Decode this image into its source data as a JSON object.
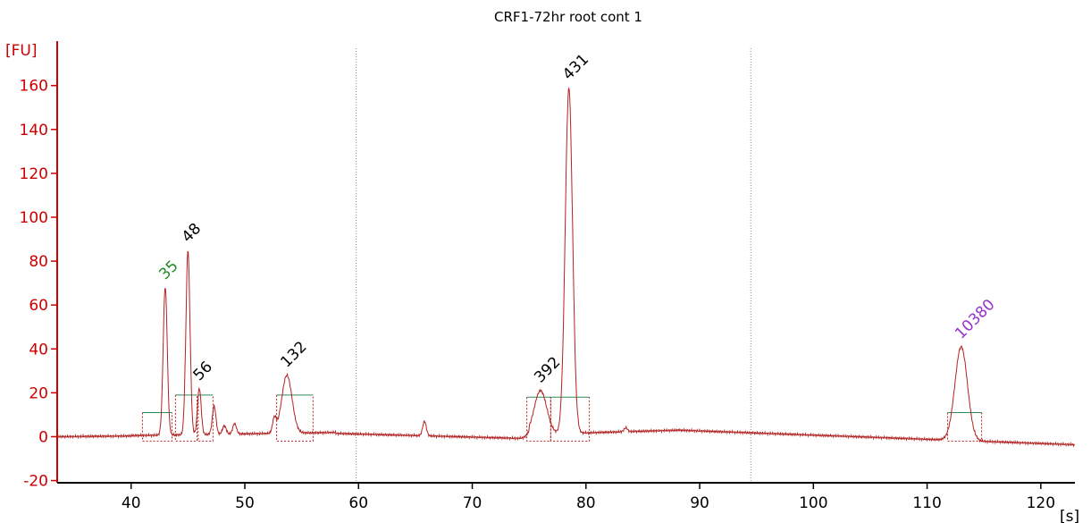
{
  "chart_data": {
    "type": "line",
    "title": "CRF1-72hr root cont 1",
    "x_unit": "[s]",
    "y_unit": "[FU]",
    "xlim": [
      33.5,
      123
    ],
    "ylim": [
      -21,
      177
    ],
    "x_ticks": [
      40,
      50,
      60,
      70,
      80,
      90,
      100,
      110,
      120
    ],
    "y_ticks": [
      -20,
      0,
      20,
      40,
      60,
      80,
      100,
      120,
      140,
      160
    ],
    "x_tick_labels": [
      "40",
      "50",
      "60",
      "70",
      "80",
      "90",
      "100",
      "110",
      "120"
    ],
    "y_tick_labels": [
      "-20",
      "0",
      "20",
      "40",
      "60",
      "80",
      "100",
      "120",
      "140",
      "160"
    ],
    "colors": {
      "trace": "#b22222",
      "axis": "#cc0000",
      "marker_lower": "#228b22",
      "marker_upper": "#9933cc",
      "peak_label": "#000000",
      "baseline": "#2e8b57",
      "divider": "#888888"
    },
    "region_dividers": [
      59.8,
      94.5
    ],
    "peaks": [
      {
        "label": "35",
        "x": 43.0,
        "y": 68,
        "kind": "marker_lower",
        "range": [
          41.0,
          43.6
        ],
        "baseline": 11
      },
      {
        "label": "48",
        "x": 45.0,
        "y": 85,
        "kind": "fragment",
        "range": [
          43.9,
          45.8
        ],
        "baseline": 19
      },
      {
        "label": "56",
        "x": 46.0,
        "y": 22,
        "kind": "fragment",
        "range": [
          45.9,
          47.2
        ],
        "baseline": 19
      },
      {
        "label": "132",
        "x": 53.7,
        "y": 28,
        "kind": "fragment",
        "range": [
          52.8,
          56.0
        ],
        "baseline": 19
      },
      {
        "label": "392",
        "x": 76.0,
        "y": 21,
        "kind": "fragment",
        "range": [
          74.8,
          76.9
        ],
        "baseline": 18
      },
      {
        "label": "431",
        "x": 78.5,
        "y": 159,
        "kind": "fragment",
        "range": [
          76.9,
          80.3
        ],
        "baseline": 18
      },
      {
        "label": "10380",
        "x": 113.0,
        "y": 41,
        "kind": "marker_upper",
        "range": [
          111.8,
          114.8
        ],
        "baseline": 11
      }
    ],
    "minor_peaks": [
      {
        "x": 47.3,
        "y": 14
      },
      {
        "x": 48.2,
        "y": 5
      },
      {
        "x": 49.1,
        "y": 6
      },
      {
        "x": 52.6,
        "y": 8
      },
      {
        "x": 65.8,
        "y": 7
      },
      {
        "x": 83.5,
        "y": 4
      }
    ]
  }
}
